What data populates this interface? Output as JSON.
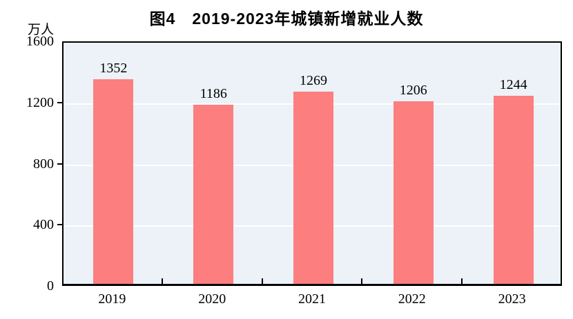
{
  "figure": {
    "title": "图4　2019-2023年城镇新增就业人数",
    "unit_label": "万人"
  },
  "colors": {
    "bar": "#FC7E7E",
    "plot_background": "#ECF2F7",
    "gridline": "#FFFFFF",
    "axis": "#000000",
    "text": "#000000"
  },
  "chart_data": {
    "type": "bar",
    "title": "图4　2019-2023年城镇新增就业人数",
    "categories": [
      "2019",
      "2020",
      "2021",
      "2022",
      "2023"
    ],
    "values": [
      1352,
      1186,
      1269,
      1206,
      1244
    ],
    "xlabel": "",
    "ylabel": "万人",
    "ylim": [
      0,
      1600
    ],
    "yticks": [
      0,
      400,
      800,
      1200,
      1600
    ],
    "grid": true,
    "legend_position": "none",
    "bar_labels_shown": true
  }
}
